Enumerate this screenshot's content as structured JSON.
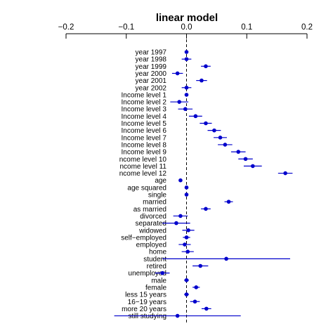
{
  "chart_data": {
    "type": "scatter",
    "title": "linear model",
    "xlabel": "",
    "ylabel": "",
    "xlim": [
      -0.2,
      0.2
    ],
    "xticks": [
      -0.2,
      -0.1,
      0.0,
      0.1,
      0.2
    ],
    "xtick_labels": [
      "−0.2",
      "−0.1",
      "0.0",
      "0.1",
      "0.2"
    ],
    "x_axis_position": "top",
    "reference_line": 0.0,
    "point_color": "#0000cc",
    "categories": [
      "year 1997",
      "year 1998",
      "year 1999",
      "year 2000",
      "year 2001",
      "year 2002",
      "Income level 1",
      "Income level 2",
      "Income level 3",
      "Income level 4",
      "Income level 5",
      "Income level 6",
      "Income level 7",
      "Income level 8",
      "Income level 9",
      "ncome level 10",
      "ncome level 11",
      "ncome level 12",
      "age",
      "age squared",
      "single",
      "married",
      "as married",
      "divorced",
      "separated",
      "widowed",
      "self−employed",
      "employed",
      "home",
      "student",
      "retired",
      "unemployed",
      "male",
      "female",
      "less 15 years",
      "16−19 years",
      "more 20 years",
      "still studying"
    ],
    "estimates": [
      0.0,
      0.0,
      0.032,
      -0.015,
      0.025,
      0.0,
      0.0,
      -0.012,
      -0.002,
      0.015,
      0.032,
      0.046,
      0.056,
      0.064,
      0.086,
      0.098,
      0.11,
      0.164,
      -0.01,
      0.0,
      0.0,
      0.07,
      0.032,
      -0.01,
      -0.017,
      0.003,
      0.0,
      -0.003,
      0.002,
      0.066,
      0.023,
      -0.04,
      0.0,
      0.016,
      0.0,
      0.014,
      0.033,
      -0.015
    ],
    "ci_low": [
      -0.003,
      -0.008,
      0.024,
      -0.024,
      0.016,
      -0.008,
      -0.003,
      -0.027,
      -0.014,
      0.004,
      0.022,
      0.035,
      0.045,
      0.052,
      0.074,
      0.086,
      0.095,
      0.152,
      -0.012,
      -0.002,
      -0.002,
      0.063,
      0.024,
      -0.022,
      -0.04,
      -0.007,
      -0.006,
      -0.013,
      -0.008,
      -0.04,
      0.01,
      -0.052,
      -0.004,
      0.01,
      -0.004,
      0.006,
      0.025,
      -0.12
    ],
    "ci_high": [
      0.003,
      0.008,
      0.04,
      -0.006,
      0.034,
      0.008,
      0.003,
      0.003,
      0.01,
      0.026,
      0.042,
      0.057,
      0.067,
      0.076,
      0.098,
      0.11,
      0.125,
      0.176,
      -0.008,
      0.002,
      0.002,
      0.077,
      0.04,
      0.002,
      0.006,
      0.013,
      0.006,
      0.007,
      0.012,
      0.172,
      0.036,
      -0.028,
      0.004,
      0.022,
      0.004,
      0.022,
      0.041,
      0.09
    ]
  }
}
